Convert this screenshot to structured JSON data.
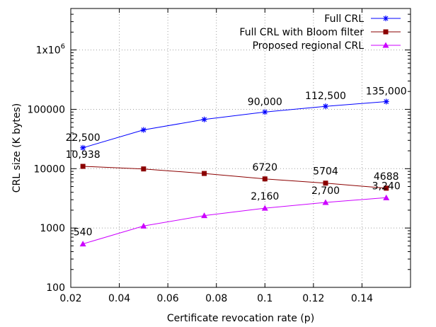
{
  "chart_data": {
    "type": "line",
    "xlabel": "Certificate revocation rate (p)",
    "ylabel": "CRL size (K bytes)",
    "xlim": [
      0.02,
      0.16
    ],
    "ylim": [
      100,
      5000000
    ],
    "yscale": "log",
    "grid": true,
    "legend_position": "top-right",
    "x_ticks": [
      0.02,
      0.04,
      0.06,
      0.08,
      0.1,
      0.12,
      0.14
    ],
    "x_tick_labels": [
      "0.02",
      "0.04",
      "0.06",
      "0.08",
      "0.1",
      "0.12",
      "0.14"
    ],
    "y_ticks": [
      100,
      1000,
      10000,
      100000,
      1000000
    ],
    "y_tick_labels": [
      "100",
      "1000",
      "10000",
      "100000",
      "1x10"
    ],
    "y_tick_label_superscript": "6",
    "x": [
      0.025,
      0.05,
      0.075,
      0.1,
      0.125,
      0.15
    ],
    "series": [
      {
        "name": "Full CRL",
        "color": "#0000ff",
        "marker": "asterisk",
        "values": [
          22500,
          45000,
          67500,
          90000,
          112500,
          135000
        ],
        "point_labels": [
          "22,500",
          "",
          "",
          "90,000",
          "112,500",
          "135,000"
        ]
      },
      {
        "name": "Full CRL with Bloom filter",
        "color": "#8b0000",
        "marker": "square",
        "values": [
          10938,
          9900,
          8300,
          6720,
          5704,
          4688
        ],
        "point_labels": [
          "10,938",
          "",
          "",
          "6720",
          "5704",
          "4688"
        ]
      },
      {
        "name": "Proposed regional CRL",
        "color": "#cc00ff",
        "marker": "triangle",
        "values": [
          540,
          1080,
          1620,
          2160,
          2700,
          3240
        ],
        "point_labels": [
          "540",
          "",
          "",
          "2,160",
          "2,700",
          "3,240"
        ]
      }
    ]
  }
}
